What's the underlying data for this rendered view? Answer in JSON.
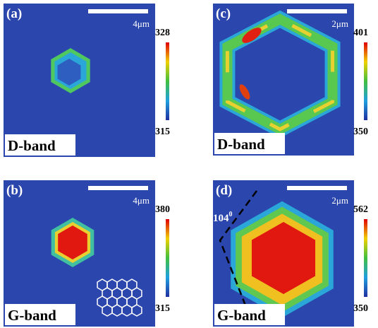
{
  "panels": [
    {
      "label": "(a)",
      "scale": "4μm",
      "cmax": 328,
      "cmin": 315,
      "band": "D-band"
    },
    {
      "label": "(c)",
      "scale": "2μm",
      "cmax": 401,
      "cmin": 350,
      "band": "D-band"
    },
    {
      "label": "(b)",
      "scale": "4μm",
      "cmax": 380,
      "cmin": 315,
      "band": "G-band"
    },
    {
      "label": "(d)",
      "scale": "2μm",
      "cmax": 562,
      "cmin": 350,
      "band": "G-band",
      "angle": "104",
      "angle_sup": "0"
    }
  ]
}
